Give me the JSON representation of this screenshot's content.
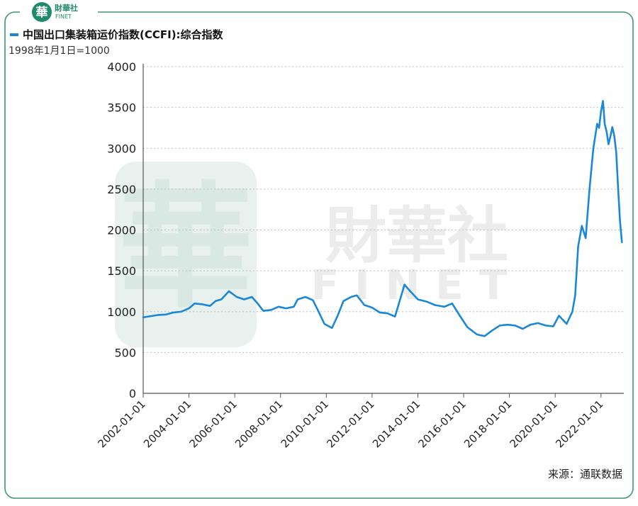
{
  "header": {
    "logo_glyph": "華",
    "logo_cn": "財華社",
    "logo_en": "FINET",
    "title": "中国出口集装箱运价指数(CCFI):综合指数",
    "subtitle": "1998年1月1日=1000"
  },
  "footer": {
    "source": "来源：通联数据"
  },
  "watermark": {
    "glyph": "華",
    "cn": "財華社",
    "en": "FINET"
  },
  "colors": {
    "frame": "#3f9478",
    "line": "#1a88d6",
    "brand": "#1f8a6c"
  },
  "chart_data": {
    "type": "line",
    "title": "中国出口集装箱运价指数(CCFI):综合指数",
    "subtitle": "1998年1月1日=1000",
    "xlabel": "",
    "ylabel": "",
    "xlim": [
      "2002-01-01",
      "2022-12-31"
    ],
    "ylim": [
      0,
      4000
    ],
    "yticks": [
      0,
      500,
      1000,
      1500,
      2000,
      2500,
      3000,
      3500,
      4000
    ],
    "xticks": [
      "2002-01-01",
      "2004-01-01",
      "2006-01-01",
      "2008-01-01",
      "2010-01-01",
      "2012-01-01",
      "2014-01-01",
      "2016-01-01",
      "2018-01-01",
      "2020-01-01",
      "2022-01-01"
    ],
    "grid": "horizontal dotted",
    "series": [
      {
        "values": [
          [
            "2002-01-01",
            930
          ],
          [
            "2002-05-01",
            945
          ],
          [
            "2002-09-01",
            960
          ],
          [
            "2003-01-01",
            965
          ],
          [
            "2003-05-01",
            990
          ],
          [
            "2003-09-01",
            1000
          ],
          [
            "2004-01-01",
            1040
          ],
          [
            "2004-04-01",
            1100
          ],
          [
            "2004-08-01",
            1090
          ],
          [
            "2004-12-01",
            1070
          ],
          [
            "2005-03-01",
            1130
          ],
          [
            "2005-06-01",
            1150
          ],
          [
            "2005-10-01",
            1250
          ],
          [
            "2006-02-01",
            1180
          ],
          [
            "2006-06-01",
            1150
          ],
          [
            "2006-10-01",
            1180
          ],
          [
            "2007-01-01",
            1100
          ],
          [
            "2007-04-01",
            1010
          ],
          [
            "2007-08-01",
            1020
          ],
          [
            "2007-12-01",
            1060
          ],
          [
            "2008-04-01",
            1040
          ],
          [
            "2008-08-01",
            1060
          ],
          [
            "2008-10-01",
            1150
          ],
          [
            "2009-02-01",
            1180
          ],
          [
            "2009-06-01",
            1140
          ],
          [
            "2009-09-01",
            1000
          ],
          [
            "2009-12-01",
            850
          ],
          [
            "2010-04-01",
            800
          ],
          [
            "2010-07-01",
            950
          ],
          [
            "2010-10-01",
            1130
          ],
          [
            "2011-02-01",
            1180
          ],
          [
            "2011-05-01",
            1200
          ],
          [
            "2011-09-01",
            1080
          ],
          [
            "2012-01-01",
            1050
          ],
          [
            "2012-05-01",
            990
          ],
          [
            "2012-09-01",
            980
          ],
          [
            "2013-01-01",
            940
          ],
          [
            "2013-06-01",
            1330
          ],
          [
            "2013-09-01",
            1250
          ],
          [
            "2014-01-01",
            1150
          ],
          [
            "2014-06-01",
            1120
          ],
          [
            "2014-10-01",
            1080
          ],
          [
            "2015-03-01",
            1060
          ],
          [
            "2015-07-01",
            1100
          ],
          [
            "2015-11-01",
            950
          ],
          [
            "2016-03-01",
            810
          ],
          [
            "2016-08-01",
            720
          ],
          [
            "2016-12-01",
            700
          ],
          [
            "2017-04-01",
            770
          ],
          [
            "2017-08-01",
            830
          ],
          [
            "2017-12-01",
            840
          ],
          [
            "2018-04-01",
            830
          ],
          [
            "2018-08-01",
            790
          ],
          [
            "2018-12-01",
            840
          ],
          [
            "2019-04-01",
            860
          ],
          [
            "2019-08-01",
            830
          ],
          [
            "2019-12-01",
            820
          ],
          [
            "2020-03-01",
            950
          ],
          [
            "2020-07-01",
            850
          ],
          [
            "2020-10-01",
            1000
          ],
          [
            "2020-11-15",
            1200
          ],
          [
            "2021-01-01",
            1800
          ],
          [
            "2021-03-01",
            2050
          ],
          [
            "2021-05-01",
            1900
          ],
          [
            "2021-07-01",
            2500
          ],
          [
            "2021-09-01",
            3000
          ],
          [
            "2021-11-01",
            3300
          ],
          [
            "2021-12-01",
            3250
          ],
          [
            "2022-01-01",
            3450
          ],
          [
            "2022-02-01",
            3580
          ],
          [
            "2022-03-01",
            3300
          ],
          [
            "2022-04-01",
            3200
          ],
          [
            "2022-05-01",
            3050
          ],
          [
            "2022-06-01",
            3150
          ],
          [
            "2022-07-01",
            3260
          ],
          [
            "2022-08-01",
            3150
          ],
          [
            "2022-09-01",
            2950
          ],
          [
            "2022-10-01",
            2500
          ],
          [
            "2022-11-01",
            2100
          ],
          [
            "2022-12-01",
            1850
          ]
        ]
      }
    ]
  }
}
